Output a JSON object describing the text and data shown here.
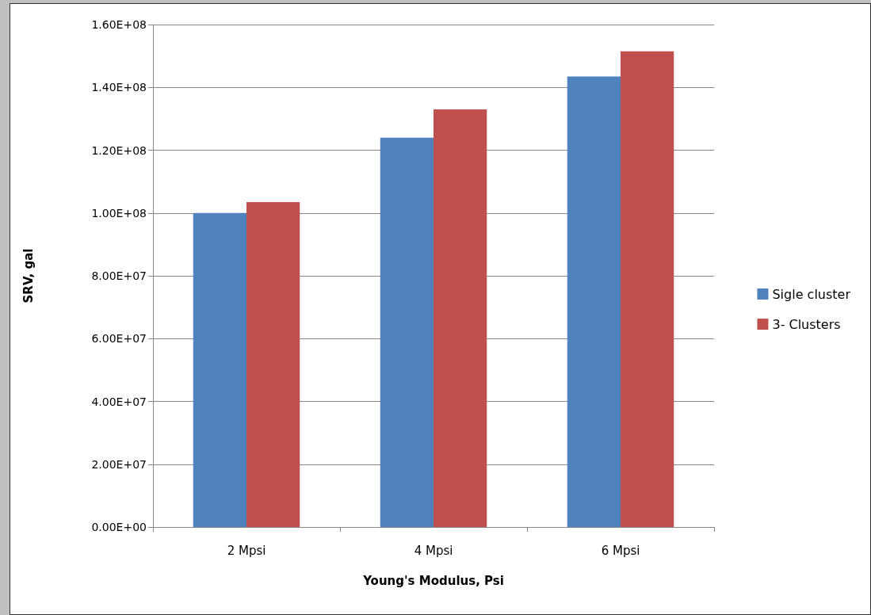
{
  "chart_data": {
    "type": "bar",
    "xlabel": "Young's Modulus, Psi",
    "ylabel": "SRV, gal",
    "categories": [
      "2 Mpsi",
      "4 Mpsi",
      "6 Mpsi"
    ],
    "series": [
      {
        "name": "Sigle cluster",
        "color": "#4f81bd",
        "values": [
          100000000,
          124000000,
          143500000
        ]
      },
      {
        "name": "3- Clusters",
        "color": "#c0504d",
        "values": [
          103500000,
          133000000,
          151500000
        ]
      }
    ],
    "ylim": [
      0,
      160000000
    ],
    "yticks": [
      {
        "value": 0,
        "label": "0.00E+00"
      },
      {
        "value": 20000000,
        "label": "2.00E+07"
      },
      {
        "value": 40000000,
        "label": "4.00E+07"
      },
      {
        "value": 60000000,
        "label": "6.00E+07"
      },
      {
        "value": 80000000,
        "label": "8.00E+07"
      },
      {
        "value": 100000000,
        "label": "1.00E+08"
      },
      {
        "value": 120000000,
        "label": "1.20E+08"
      },
      {
        "value": 140000000,
        "label": "1.40E+08"
      },
      {
        "value": 160000000,
        "label": "1.60E+08"
      }
    ],
    "grid": "y",
    "legend": "right"
  }
}
